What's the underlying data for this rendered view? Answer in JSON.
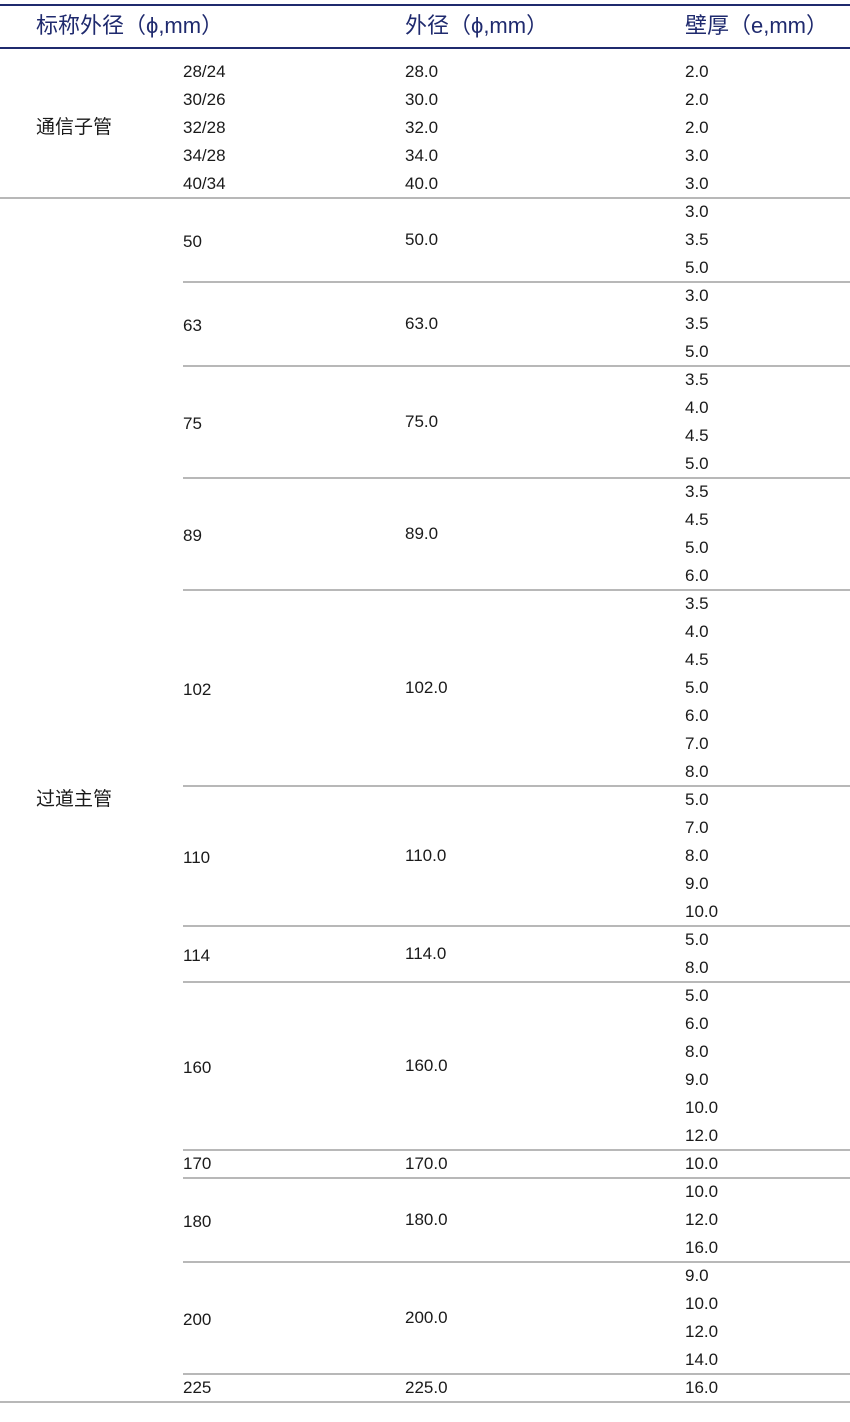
{
  "header": {
    "col_nominal": "标称外径（ϕ,mm）",
    "col_outer": "外径（ϕ,mm）",
    "col_wall": "壁厚（e,mm）"
  },
  "colors": {
    "header_text": "#1f2a6e",
    "rule": "#1f2a6e",
    "separator": "#b8b8b8"
  },
  "categories": [
    {
      "name": "通信子管",
      "groups": [
        {
          "nominal": "28/24",
          "outer": "28.0",
          "walls": [
            "2.0"
          ]
        },
        {
          "nominal": "30/26",
          "outer": "30.0",
          "walls": [
            "2.0"
          ]
        },
        {
          "nominal": "32/28",
          "outer": "32.0",
          "walls": [
            "2.0"
          ]
        },
        {
          "nominal": "34/28",
          "outer": "34.0",
          "walls": [
            "3.0"
          ]
        },
        {
          "nominal": "40/34",
          "outer": "40.0",
          "walls": [
            "3.0"
          ]
        }
      ],
      "separated": false
    },
    {
      "name": "过道主管",
      "groups": [
        {
          "nominal": "50",
          "outer": "50.0",
          "walls": [
            "3.0",
            "3.5",
            "5.0"
          ]
        },
        {
          "nominal": "63",
          "outer": "63.0",
          "walls": [
            "3.0",
            "3.5",
            "5.0"
          ]
        },
        {
          "nominal": "75",
          "outer": "75.0",
          "walls": [
            "3.5",
            "4.0",
            "4.5",
            "5.0"
          ]
        },
        {
          "nominal": "89",
          "outer": "89.0",
          "walls": [
            "3.5",
            "4.5",
            "5.0",
            "6.0"
          ]
        },
        {
          "nominal": "102",
          "outer": "102.0",
          "walls": [
            "3.5",
            "4.0",
            "4.5",
            "5.0",
            "6.0",
            "7.0",
            "8.0"
          ]
        },
        {
          "nominal": "110",
          "outer": "110.0",
          "walls": [
            "5.0",
            "7.0",
            "8.0",
            "9.0",
            "10.0"
          ]
        },
        {
          "nominal": "114",
          "outer": "114.0",
          "walls": [
            "5.0",
            "8.0"
          ]
        },
        {
          "nominal": "160",
          "outer": "160.0",
          "walls": [
            "5.0",
            "6.0",
            "8.0",
            "9.0",
            "10.0",
            "12.0"
          ]
        },
        {
          "nominal": "170",
          "outer": "170.0",
          "walls": [
            "10.0"
          ]
        },
        {
          "nominal": "180",
          "outer": "180.0",
          "walls": [
            "10.0",
            "12.0",
            "16.0"
          ]
        },
        {
          "nominal": "200",
          "outer": "200.0",
          "walls": [
            "9.0",
            "10.0",
            "12.0",
            "14.0"
          ]
        },
        {
          "nominal": "225",
          "outer": "225.0",
          "walls": [
            "16.0"
          ]
        }
      ],
      "separated": true
    }
  ]
}
